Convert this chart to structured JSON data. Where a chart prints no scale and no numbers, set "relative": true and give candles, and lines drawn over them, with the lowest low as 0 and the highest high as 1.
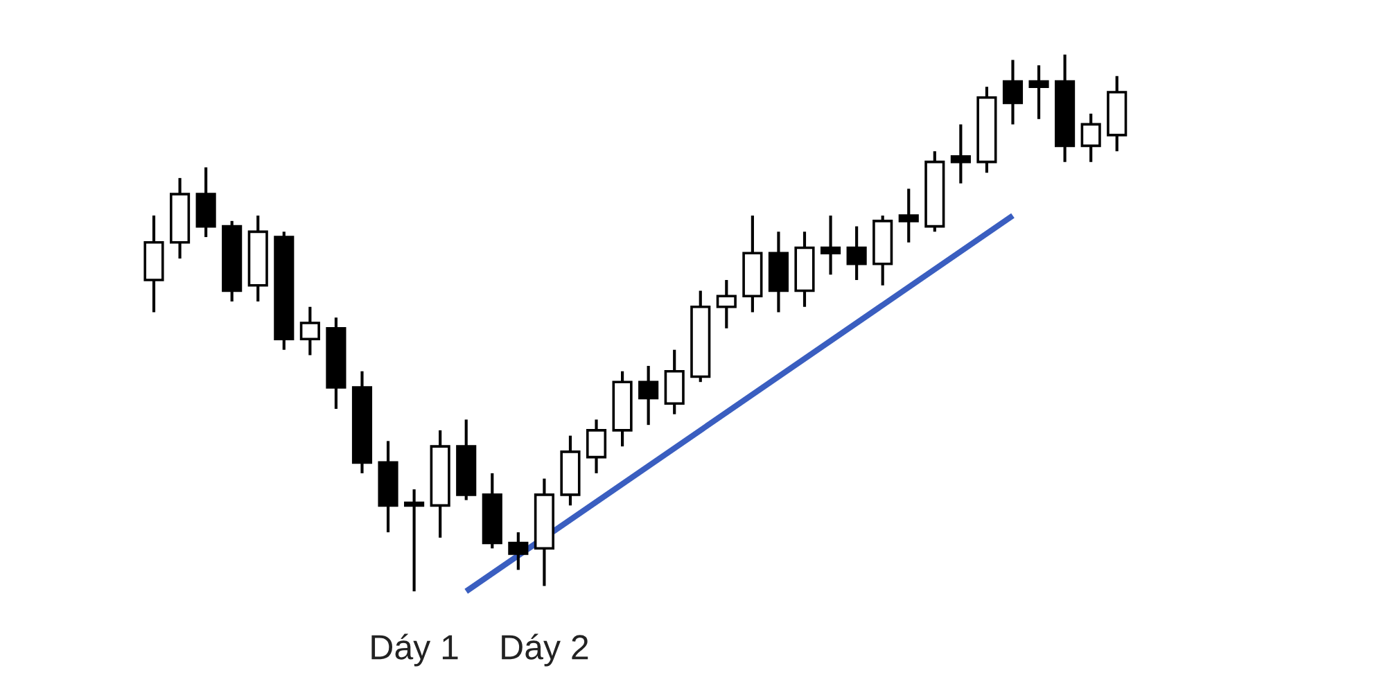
{
  "chart_data": {
    "type": "candlestick",
    "relative": true,
    "categories": [
      null,
      null,
      null,
      null,
      null,
      null,
      null,
      null,
      null,
      null,
      null,
      null,
      null,
      null,
      null,
      null,
      null,
      null,
      null,
      null,
      null,
      null,
      null,
      null,
      null,
      null,
      null,
      null,
      null,
      null,
      null,
      null,
      null,
      null,
      null,
      null,
      null,
      null
    ],
    "ohlc": [
      [
        0.58,
        0.7,
        0.52,
        0.65
      ],
      [
        0.65,
        0.77,
        0.62,
        0.74
      ],
      [
        0.74,
        0.79,
        0.66,
        0.68
      ],
      [
        0.68,
        0.69,
        0.54,
        0.56
      ],
      [
        0.57,
        0.7,
        0.54,
        0.67
      ],
      [
        0.66,
        0.67,
        0.45,
        0.47
      ],
      [
        0.47,
        0.53,
        0.44,
        0.5
      ],
      [
        0.49,
        0.51,
        0.34,
        0.38
      ],
      [
        0.38,
        0.41,
        0.22,
        0.24
      ],
      [
        0.24,
        0.28,
        0.11,
        0.16
      ],
      [
        0.165,
        0.19,
        0,
        0.16
      ],
      [
        0.16,
        0.3,
        0.1,
        0.27
      ],
      [
        0.27,
        0.32,
        0.17,
        0.18
      ],
      [
        0.18,
        0.22,
        0.08,
        0.09
      ],
      [
        0.09,
        0.11,
        0.04,
        0.07
      ],
      [
        0.08,
        0.21,
        0.01,
        0.18
      ],
      [
        0.18,
        0.29,
        0.16,
        0.26
      ],
      [
        0.25,
        0.32,
        0.22,
        0.3
      ],
      [
        0.3,
        0.41,
        0.27,
        0.39
      ],
      [
        0.39,
        0.42,
        0.31,
        0.36
      ],
      [
        0.35,
        0.45,
        0.33,
        0.41
      ],
      [
        0.4,
        0.56,
        0.39,
        0.53
      ],
      [
        0.53,
        0.58,
        0.49,
        0.55
      ],
      [
        0.55,
        0.7,
        0.52,
        0.63
      ],
      [
        0.63,
        0.67,
        0.52,
        0.56
      ],
      [
        0.56,
        0.67,
        0.53,
        0.64
      ],
      [
        0.64,
        0.7,
        0.59,
        0.63
      ],
      [
        0.64,
        0.68,
        0.58,
        0.61
      ],
      [
        0.61,
        0.7,
        0.57,
        0.69
      ],
      [
        0.7,
        0.75,
        0.65,
        0.69
      ],
      [
        0.68,
        0.82,
        0.67,
        0.8
      ],
      [
        0.81,
        0.87,
        0.76,
        0.8
      ],
      [
        0.8,
        0.94,
        0.78,
        0.92
      ],
      [
        0.95,
        0.99,
        0.87,
        0.91
      ],
      [
        0.95,
        0.98,
        0.88,
        0.94
      ],
      [
        0.95,
        1.0,
        0.8,
        0.83
      ],
      [
        0.83,
        0.89,
        0.8,
        0.87
      ],
      [
        0.85,
        0.96,
        0.82,
        0.93
      ]
    ],
    "series": [
      {
        "type": "line",
        "color": "#3a5ec0",
        "values": [
          null,
          null,
          null,
          null,
          null,
          null,
          null,
          null,
          null,
          null,
          null,
          null,
          0,
          null,
          null,
          null,
          null,
          null,
          null,
          null,
          null,
          null,
          null,
          null,
          null,
          null,
          null,
          null,
          null,
          null,
          null,
          null,
          null,
          0.7,
          null,
          null,
          null,
          null
        ]
      }
    ],
    "annotations": [
      "Dáy 1",
      "Dáy 2"
    ]
  }
}
